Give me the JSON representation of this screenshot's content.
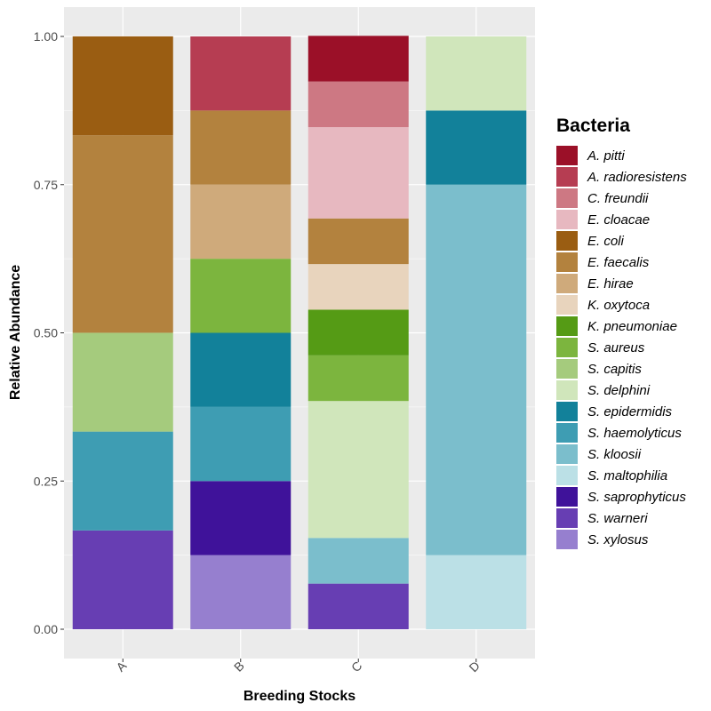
{
  "chart_data": {
    "type": "bar",
    "stacked": true,
    "xlabel": "Breeding Stocks",
    "ylabel": "Relative Abundance",
    "ylim": [
      0,
      1
    ],
    "yticks": [
      {
        "value": 0.0,
        "label": "0.00"
      },
      {
        "value": 0.25,
        "label": "0.25"
      },
      {
        "value": 0.5,
        "label": "0.50"
      },
      {
        "value": 0.75,
        "label": "0.75"
      },
      {
        "value": 1.0,
        "label": "1.00"
      }
    ],
    "categories": [
      "A",
      "B",
      "C",
      "D"
    ],
    "legend_title": "Bacteria",
    "legend_position": "right",
    "series": [
      {
        "name": "A. pitti",
        "color": "#9b1028",
        "values": [
          0,
          0,
          0.077,
          0
        ]
      },
      {
        "name": "A. radioresistens",
        "color": "#b63d52",
        "values": [
          0,
          0.125,
          0,
          0
        ]
      },
      {
        "name": "C. freundii",
        "color": "#cd7883",
        "values": [
          0,
          0,
          0.077,
          0
        ]
      },
      {
        "name": "E. cloacae",
        "color": "#e7b8c0",
        "values": [
          0,
          0,
          0.154,
          0
        ]
      },
      {
        "name": "E. coli",
        "color": "#9a5d12",
        "values": [
          0.1667,
          0,
          0,
          0
        ]
      },
      {
        "name": "E. faecalis",
        "color": "#b3823e",
        "values": [
          0.3333,
          0.125,
          0.077,
          0
        ]
      },
      {
        "name": "E. hirae",
        "color": "#cfaa7b",
        "values": [
          0,
          0.125,
          0,
          0
        ]
      },
      {
        "name": "K. oxytoca",
        "color": "#e8d4bd",
        "values": [
          0,
          0,
          0.077,
          0
        ]
      },
      {
        "name": "K. pneumoniae",
        "color": "#559b15",
        "values": [
          0,
          0,
          0.077,
          0
        ]
      },
      {
        "name": "S. aureus",
        "color": "#7cb53e",
        "values": [
          0,
          0.125,
          0.077,
          0
        ]
      },
      {
        "name": "S. capitis",
        "color": "#a5cb7d",
        "values": [
          0.1667,
          0,
          0,
          0
        ]
      },
      {
        "name": "S. delphini",
        "color": "#d0e6bb",
        "values": [
          0,
          0,
          0.231,
          0.125
        ]
      },
      {
        "name": "S. epidermidis",
        "color": "#12819a",
        "values": [
          0,
          0.125,
          0,
          0.125
        ]
      },
      {
        "name": "S. haemolyticus",
        "color": "#3e9db3",
        "values": [
          0.1667,
          0.125,
          0,
          0
        ]
      },
      {
        "name": "S. kloosii",
        "color": "#7bbecc",
        "values": [
          0,
          0,
          0.077,
          0.625
        ]
      },
      {
        "name": "S. maltophilia",
        "color": "#bbe0e6",
        "values": [
          0,
          0,
          0,
          0.125
        ]
      },
      {
        "name": "S. saprophyticus",
        "color": "#3f129a",
        "values": [
          0,
          0.125,
          0,
          0
        ]
      },
      {
        "name": "S. warneri",
        "color": "#673eb3",
        "values": [
          0.1667,
          0,
          0.077,
          0
        ]
      },
      {
        "name": "S. xylosus",
        "color": "#967fcf",
        "values": [
          0,
          0.125,
          0,
          0
        ]
      }
    ]
  }
}
